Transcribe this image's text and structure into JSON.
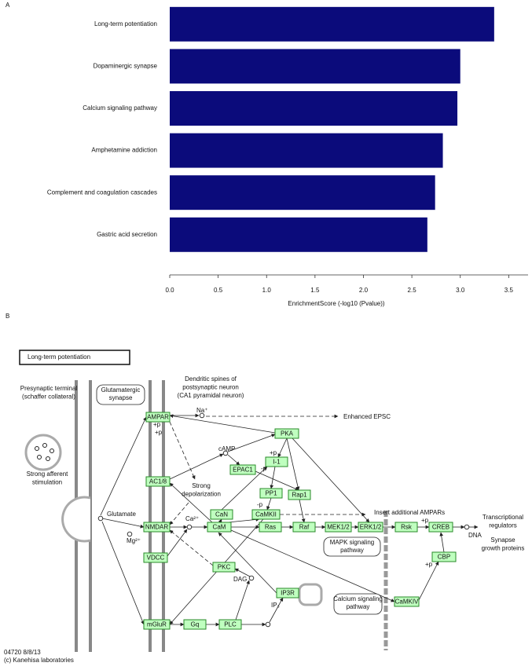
{
  "panel_labels": [
    "A",
    "B"
  ],
  "chart_data": {
    "type": "bar",
    "orientation": "horizontal",
    "categories": [
      "Long-term potentiation",
      "Dopaminergic synapse",
      "Calcium signaling pathway",
      "Amphetamine addiction",
      "Complement and coagulation cascades",
      "Gastric acid secretion"
    ],
    "values": [
      3.35,
      3.0,
      2.97,
      2.82,
      2.74,
      2.66
    ],
    "color": "#0b0b7b",
    "xlabel": "EnrichmentScore (-log10 (Pvalue))",
    "xlim": [
      0,
      3.7
    ],
    "xticks": [
      {
        "value": 0,
        "label": "0.0"
      },
      0.5,
      {
        "value": 1,
        "label": "1.0"
      },
      1.5,
      {
        "value": 2,
        "label": "2.0"
      },
      2.5,
      {
        "value": 3,
        "label": "3.0"
      },
      3.5
    ]
  },
  "diagram": {
    "title": "Long-term potentiation",
    "nodes": [
      {
        "label": "AMPAR"
      },
      {
        "label": "PKA"
      },
      {
        "label": "I-1"
      },
      {
        "label": "EPAC1"
      },
      {
        "label": "AC1/8"
      },
      {
        "label": "PP1"
      },
      {
        "label": "Rap1"
      },
      {
        "label": "CaN"
      },
      {
        "label": "CaMKII"
      },
      {
        "label": "NMDAR"
      },
      {
        "label": "CaM"
      },
      {
        "label": "Ras"
      },
      {
        "label": "Raf"
      },
      {
        "label": "MEK1/2"
      },
      {
        "label": "ERK1/2"
      },
      {
        "label": "Rsk"
      },
      {
        "label": "CREB"
      },
      {
        "label": "CBP"
      },
      {
        "label": "VDCC"
      },
      {
        "label": "PKC"
      },
      {
        "label": "IP3R"
      },
      {
        "label": "CaMKIV"
      },
      {
        "label": "mGluR"
      },
      {
        "label": "Gq"
      },
      {
        "label": "PLC"
      }
    ],
    "pathway_links": [
      [
        "Glutamatergic",
        "synapse"
      ],
      [
        "MAPK signaling",
        "pathway"
      ],
      [
        "Calcium signaling",
        "pathway"
      ]
    ],
    "texts": [
      [
        "Presynaptic terminal",
        "(schaffer collateral)"
      ],
      [
        "Dendritic spines of",
        "postsynaptic neuron",
        "(CA1 pyramidal neuron)"
      ],
      [
        "Strong afferent",
        "stimulation"
      ],
      [
        "Strong",
        "depolarization"
      ],
      [
        "Transcriptional",
        "regulators"
      ],
      [
        "Synapse",
        "growth proteins"
      ]
    ],
    "labels": [
      "Na⁺",
      "Enhanced EPSC",
      "+p",
      "+p",
      "cAMP",
      "+p",
      "-p",
      "Glutamate",
      "Insert additional AMPARs",
      "-p",
      "Ca²⁺",
      "Mg²⁺",
      "DNA",
      "+p",
      "+p",
      "DAG",
      "IP₃"
    ],
    "footer": [
      "04720 8/8/13",
      "(c) Kanehisa laboratories"
    ]
  }
}
